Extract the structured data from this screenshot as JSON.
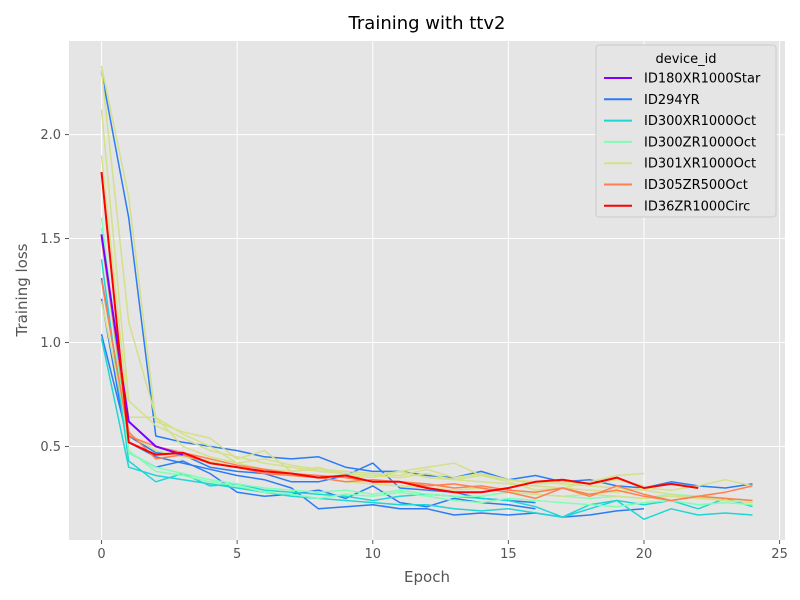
{
  "chart_data": {
    "type": "line",
    "title": "Training with ttv2",
    "xlabel": "Epoch",
    "ylabel": "Training loss",
    "xlim": [
      -1.2,
      25.2
    ],
    "ylim": [
      0.05,
      2.45
    ],
    "xticks": [
      0,
      5,
      10,
      15,
      20,
      25
    ],
    "xtick_labels": [
      "0",
      "5",
      "10",
      "15",
      "20",
      "25"
    ],
    "yticks": [
      0.5,
      1.0,
      1.5,
      2.0
    ],
    "ytick_labels": [
      "0.5",
      "1.0",
      "1.5",
      "2.0"
    ],
    "grid": true,
    "legend_position": "top-right",
    "legend_title": "device_id",
    "series": [
      {
        "name": "ID180XR1000Star",
        "color": "#7f00ff",
        "highlight": true,
        "runs": [
          [
            1.52,
            0.62,
            0.5,
            0.46
          ]
        ]
      },
      {
        "name": "ID294YR",
        "color": "#2b7cf4",
        "runs": [
          [
            1.21,
            0.47,
            0.4,
            0.43,
            0.37,
            0.28,
            0.26,
            0.27,
            0.29,
            0.25,
            0.31,
            0.23,
            0.21,
            0.25,
            0.23,
            0.22,
            0.2
          ],
          [
            2.3,
            1.6,
            0.55,
            0.52,
            0.5,
            0.48,
            0.45,
            0.44,
            0.45,
            0.4,
            0.38,
            0.38,
            0.36,
            0.35,
            0.38,
            0.34,
            0.36,
            0.33,
            0.34,
            0.31,
            0.3,
            0.33,
            0.31,
            0.3,
            0.32
          ],
          [
            1.04,
            0.52,
            0.45,
            0.42,
            0.39,
            0.36,
            0.34,
            0.3,
            0.2,
            0.21,
            0.22,
            0.2,
            0.2,
            0.17,
            0.18,
            0.17,
            0.18,
            0.16,
            0.17,
            0.19,
            0.2
          ],
          [
            1.31,
            0.55,
            0.47,
            0.46,
            0.4,
            0.38,
            0.37,
            0.33,
            0.33,
            0.36,
            0.42,
            0.3,
            0.29,
            0.28,
            0.25,
            0.24,
            0.23
          ]
        ]
      },
      {
        "name": "ID300XR1000Oct",
        "color": "#1fd6d6",
        "runs": [
          [
            1.02,
            0.4,
            0.36,
            0.34,
            0.32,
            0.3,
            0.28,
            0.26,
            0.25,
            0.24,
            0.23,
            0.22,
            0.22,
            0.2,
            0.19,
            0.2,
            0.18,
            0.16,
            0.2,
            0.24,
            0.15,
            0.2,
            0.17,
            0.18,
            0.17
          ],
          [
            1.4,
            0.43,
            0.33,
            0.37,
            0.31,
            0.32,
            0.29,
            0.28,
            0.27,
            0.26,
            0.24,
            0.26,
            0.27,
            0.26,
            0.25,
            0.24,
            0.21,
            0.16,
            0.22,
            0.24,
            0.22,
            0.24,
            0.2,
            0.25,
            0.21
          ]
        ]
      },
      {
        "name": "ID300ZR1000Oct",
        "color": "#80ffb4",
        "runs": [
          [
            1.6,
            0.48,
            0.38,
            0.36,
            0.33,
            0.31,
            0.28,
            0.27,
            0.25,
            0.27,
            0.26,
            0.28,
            0.26,
            0.24,
            0.23,
            0.25,
            0.24,
            0.23,
            0.22,
            0.21,
            0.23,
            0.24,
            0.22,
            0.23,
            0.22
          ],
          [
            1.55,
            0.47,
            0.4,
            0.37,
            0.34,
            0.32,
            0.3,
            0.29,
            0.28,
            0.29,
            0.27,
            0.29,
            0.27,
            0.26,
            0.26,
            0.28,
            0.27,
            0.26,
            0.25,
            0.26,
            0.25,
            0.27,
            0.26,
            0.25,
            0.24
          ]
        ]
      },
      {
        "name": "ID301XR1000Oct",
        "color": "#d4e08a",
        "runs": [
          [
            2.33,
            1.7,
            0.62,
            0.57,
            0.54,
            0.44,
            0.48,
            0.38,
            0.4,
            0.36,
            0.35,
            0.38,
            0.4,
            0.42,
            0.36,
            0.33,
            0.29,
            0.3,
            0.33,
            0.36,
            0.37
          ],
          [
            2.31,
            1.1,
            0.64,
            0.56,
            0.5,
            0.42,
            0.39,
            0.38,
            0.39,
            0.37,
            0.36,
            0.35,
            0.37,
            0.34,
            0.36,
            0.34,
            0.32,
            0.33,
            0.32,
            0.34,
            0.31
          ],
          [
            2.12,
            0.72,
            0.6,
            0.54,
            0.48,
            0.45,
            0.42,
            0.4,
            0.38,
            0.37,
            0.36,
            0.38,
            0.35,
            0.34,
            0.33,
            0.32,
            0.31,
            0.3,
            0.29,
            0.28,
            0.3,
            0.29,
            0.31,
            0.34,
            0.31
          ],
          [
            1.9,
            0.64,
            0.64,
            0.5,
            0.45,
            0.42,
            0.44,
            0.41,
            0.39,
            0.38,
            0.37,
            0.36,
            0.39,
            0.35,
            0.37,
            0.34,
            0.33,
            0.32,
            0.31,
            0.3,
            0.29,
            0.27,
            0.25,
            0.24,
            0.23
          ],
          [
            1.2,
            0.56,
            0.48,
            0.45,
            0.43,
            0.4,
            0.38,
            0.36,
            0.35,
            0.33,
            0.32,
            0.31,
            0.3,
            0.29,
            0.3,
            0.28,
            0.27,
            0.26,
            0.27,
            0.26,
            0.25,
            0.26,
            0.25,
            0.25,
            0.24
          ]
        ]
      },
      {
        "name": "ID305ZR500Oct",
        "color": "#ff7f50",
        "runs": [
          [
            1.5,
            0.57,
            0.44,
            0.46,
            0.42,
            0.4,
            0.37,
            0.36,
            0.35,
            0.33,
            0.34,
            0.33,
            0.32,
            0.3,
            0.31,
            0.29,
            0.28,
            0.3,
            0.26,
            0.31,
            0.27,
            0.24,
            0.26,
            0.28,
            0.31
          ],
          [
            1.3,
            0.55,
            0.5,
            0.47,
            0.44,
            0.41,
            0.39,
            0.37,
            0.36,
            0.35,
            0.33,
            0.33,
            0.31,
            0.32,
            0.3,
            0.28,
            0.25,
            0.3,
            0.27,
            0.29,
            0.26,
            0.24,
            0.26,
            0.25,
            0.24
          ]
        ]
      },
      {
        "name": "ID36ZR1000Circ",
        "color": "#ff0000",
        "highlight": true,
        "runs": [
          [
            1.82,
            0.52,
            0.46,
            0.47,
            0.42,
            0.4,
            0.38,
            0.37,
            0.35,
            0.36,
            0.33,
            0.33,
            0.3,
            0.28,
            0.28,
            0.3,
            0.33,
            0.34,
            0.32,
            0.35,
            0.3,
            0.32,
            0.3
          ]
        ]
      }
    ]
  }
}
